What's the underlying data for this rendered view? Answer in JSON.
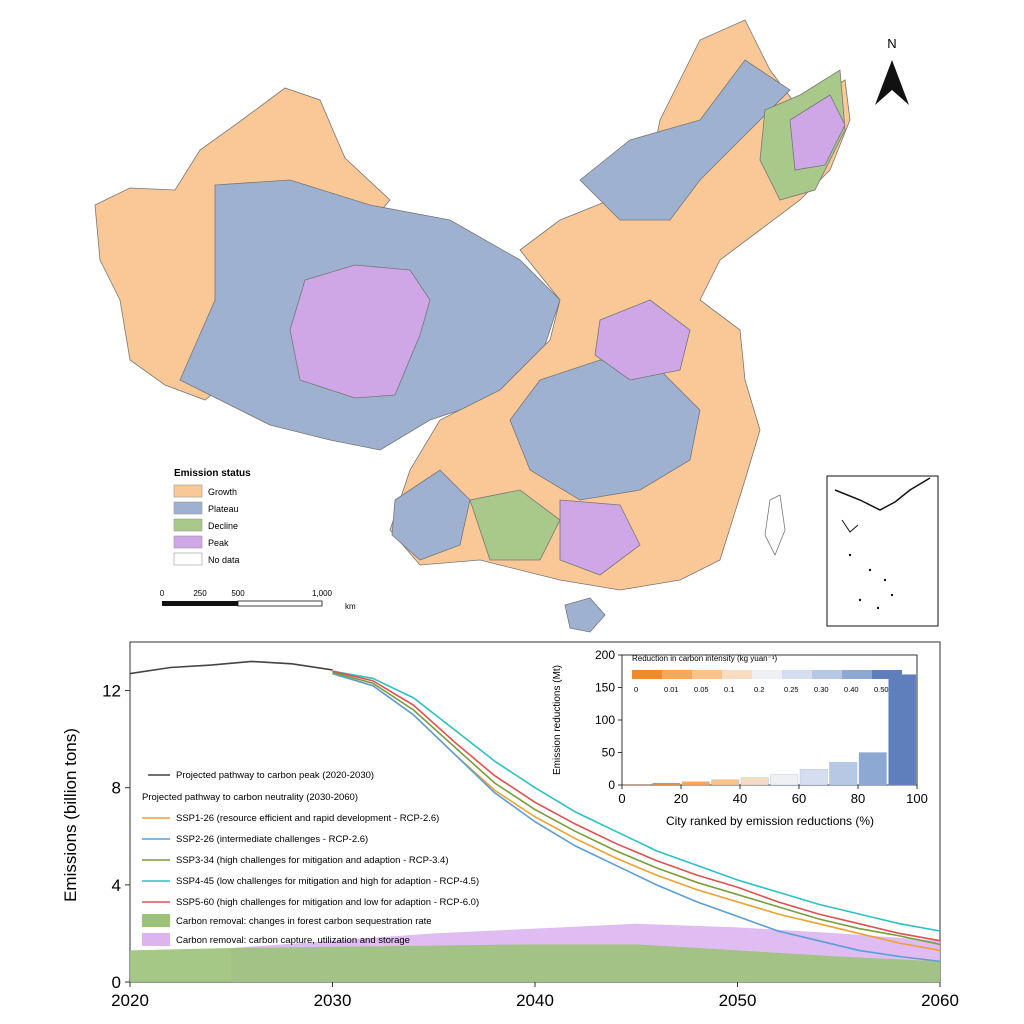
{
  "map": {
    "north_label": "N",
    "legend_title": "Emission status",
    "legend_items": [
      {
        "label": "Growth",
        "color": "#f9c896"
      },
      {
        "label": "Plateau",
        "color": "#9fb1d0"
      },
      {
        "label": "Decline",
        "color": "#a8c98a"
      },
      {
        "label": "Peak",
        "color": "#cfa6e6"
      },
      {
        "label": "No data",
        "color": "#ffffff"
      }
    ],
    "scale_ticks": [
      "0",
      "250",
      "500",
      "1,000"
    ],
    "scale_unit": "km"
  },
  "chart_data": [
    {
      "type": "line",
      "ylabel": "Emissions (billion tons)",
      "xlim": [
        2020,
        2060
      ],
      "ylim": [
        0,
        14
      ],
      "x_ticks": [
        2020,
        2030,
        2040,
        2050,
        2060
      ],
      "y_ticks": [
        0,
        4,
        8,
        12
      ],
      "legend_placement": "left-middle",
      "legend_heading": "Projected pathway to carbon neutrality (2030-2060)",
      "series": [
        {
          "name": "Projected pathway to carbon peak (2020-2030)",
          "color": "#444444",
          "x": [
            2020,
            2022,
            2024,
            2026,
            2028,
            2030
          ],
          "y": [
            12.7,
            12.95,
            13.05,
            13.2,
            13.1,
            12.85
          ]
        },
        {
          "name": "SSP1-26 (resource efficient and rapid development - RCP-2.6)",
          "color": "#f0a030",
          "x": [
            2030,
            2032,
            2034,
            2036,
            2038,
            2040,
            2042,
            2044,
            2046,
            2048,
            2050,
            2052,
            2054,
            2056,
            2058,
            2060
          ],
          "y": [
            12.7,
            12.2,
            11.0,
            9.4,
            7.9,
            6.8,
            5.9,
            5.1,
            4.4,
            3.8,
            3.3,
            2.8,
            2.4,
            2.0,
            1.6,
            1.3
          ]
        },
        {
          "name": "SSP2-26 (intermediate challenges - RCP-2.6)",
          "color": "#5a9fd6",
          "x": [
            2030,
            2032,
            2034,
            2036,
            2038,
            2040,
            2042,
            2044,
            2046,
            2048,
            2050,
            2052,
            2054,
            2056,
            2058,
            2060
          ],
          "y": [
            12.7,
            12.2,
            11.0,
            9.4,
            7.8,
            6.6,
            5.6,
            4.8,
            4.0,
            3.3,
            2.7,
            2.1,
            1.7,
            1.3,
            1.05,
            0.85
          ]
        },
        {
          "name": "SSP3-34 (high challenges for mitigation and adaption - RCP-3.4)",
          "color": "#7a9c3a",
          "x": [
            2030,
            2032,
            2034,
            2036,
            2038,
            2040,
            2042,
            2044,
            2046,
            2048,
            2050,
            2052,
            2054,
            2056,
            2058,
            2060
          ],
          "y": [
            12.75,
            12.3,
            11.2,
            9.7,
            8.2,
            7.1,
            6.2,
            5.4,
            4.7,
            4.1,
            3.6,
            3.1,
            2.6,
            2.2,
            1.9,
            1.55
          ]
        },
        {
          "name": "SSP4-45 (low challenges for mitigation and high for adaption - RCP-4.5)",
          "color": "#2cc0c4",
          "x": [
            2030,
            2032,
            2034,
            2036,
            2038,
            2040,
            2042,
            2044,
            2046,
            2048,
            2050,
            2052,
            2054,
            2056,
            2058,
            2060
          ],
          "y": [
            12.8,
            12.5,
            11.7,
            10.4,
            9.1,
            8.0,
            7.0,
            6.2,
            5.4,
            4.8,
            4.2,
            3.7,
            3.2,
            2.8,
            2.4,
            2.1
          ]
        },
        {
          "name": "SSP5-60 (high challenges for mitigation and low for adaption - RCP-6.0)",
          "color": "#e05050",
          "x": [
            2030,
            2032,
            2034,
            2036,
            2038,
            2040,
            2042,
            2044,
            2046,
            2048,
            2050,
            2052,
            2054,
            2056,
            2058,
            2060
          ],
          "y": [
            12.8,
            12.4,
            11.4,
            9.9,
            8.5,
            7.4,
            6.5,
            5.7,
            5.0,
            4.4,
            3.9,
            3.3,
            2.8,
            2.4,
            2.0,
            1.7
          ]
        }
      ],
      "areas": [
        {
          "name": "Carbon removal: changes in forest carbon sequestration rate",
          "color": "#9cc27a",
          "x": [
            2020,
            2025,
            2030,
            2035,
            2040,
            2045,
            2050,
            2055,
            2060
          ],
          "y": [
            1.3,
            1.4,
            1.45,
            1.5,
            1.55,
            1.55,
            1.3,
            1.05,
            0.85
          ]
        },
        {
          "name": "Carbon removal: carbon capture, utilization and storage",
          "color": "#dcb5ef",
          "x": [
            2025,
            2030,
            2035,
            2040,
            2045,
            2050,
            2055,
            2060
          ],
          "y": [
            1.4,
            1.7,
            2.0,
            2.2,
            2.4,
            2.25,
            2.0,
            1.7
          ]
        }
      ]
    },
    {
      "type": "bar",
      "xlabel": "City ranked by emission reductions (%)",
      "ylabel": "Emission reductions (Mt)",
      "xlim": [
        0,
        100
      ],
      "ylim": [
        0,
        200
      ],
      "x_ticks": [
        0,
        20,
        40,
        60,
        80,
        100
      ],
      "y_ticks": [
        0,
        50,
        100,
        150,
        200
      ],
      "colorbar_title": "Reduction in carbon intensity (kg yuan⁻¹)",
      "colorbar_ticks": [
        "0",
        "0.01",
        "0.05",
        "0.1",
        "0.2",
        "0.25",
        "0.30",
        "0.40",
        "0.50"
      ],
      "colorbar_colors": [
        "#f08a2a",
        "#f5a85a",
        "#f8c48c",
        "#f7dcc0",
        "#eef0f4",
        "#d4def0",
        "#b6c8e4",
        "#8ea8d4",
        "#5f7fbc"
      ],
      "values_by_decile": [
        1,
        3,
        5,
        8,
        11,
        16,
        24,
        35,
        50,
        170
      ]
    }
  ]
}
